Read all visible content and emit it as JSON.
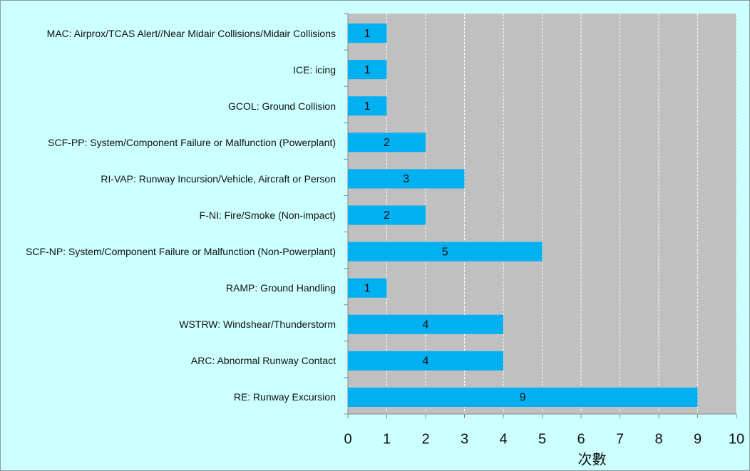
{
  "chart_data": {
    "type": "hbar",
    "categories": [
      "MAC: Airprox/TCAS Alert//Near Midair Collisions/Midair Collisions",
      "ICE: icing",
      "GCOL: Ground Collision",
      "SCF-PP: System/Component Failure or Malfunction (Powerplant)",
      "RI-VAP: Runway Incursion/Vehicle, Aircraft or Person",
      "F-NI: Fire/Smoke (Non-impact)",
      "SCF-NP: System/Component Failure or Malfunction (Non-Powerplant)",
      "RAMP: Ground Handling",
      "WSTRW: Windshear/Thunderstorm",
      "ARC: Abnormal Runway Contact",
      "RE: Runway Excursion"
    ],
    "values": [
      1,
      1,
      1,
      2,
      3,
      2,
      5,
      1,
      4,
      4,
      9
    ],
    "color": "#00b0f0",
    "xlabel": "次數",
    "xlim": [
      0,
      10
    ],
    "xticks": [
      0,
      1,
      2,
      3,
      4,
      5,
      6,
      7,
      8,
      9,
      10
    ],
    "grid": true
  }
}
